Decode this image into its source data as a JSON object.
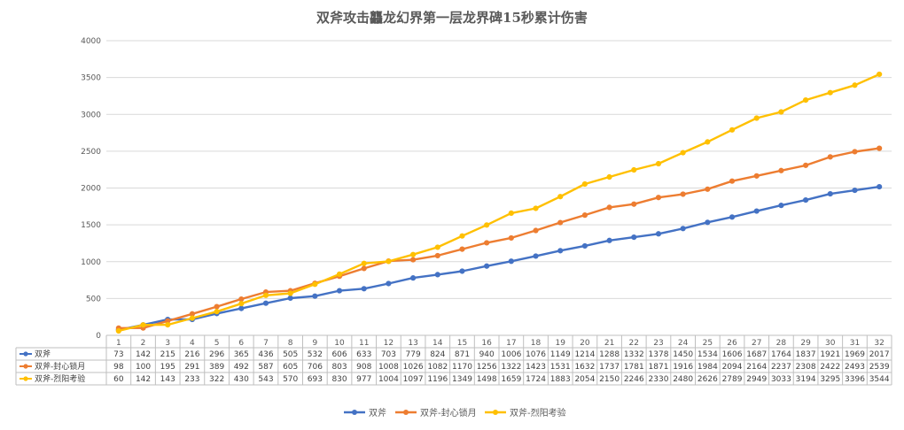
{
  "chart_data": {
    "type": "line",
    "title": "双斧攻击龘龙幻界第一层龙界碑15秒累计伤害",
    "xlabel": "",
    "ylabel": "",
    "ylim": [
      0,
      4000
    ],
    "yticks": [
      "0",
      "500",
      "1000",
      "1500",
      "2000",
      "2500",
      "3000",
      "3500",
      "4000"
    ],
    "grid": true,
    "legend_position": "bottom",
    "categories": [
      "1",
      "2",
      "3",
      "4",
      "5",
      "6",
      "7",
      "8",
      "9",
      "10",
      "11",
      "12",
      "13",
      "14",
      "15",
      "16",
      "17",
      "18",
      "19",
      "20",
      "21",
      "22",
      "23",
      "24",
      "25",
      "26",
      "27",
      "28",
      "29",
      "30",
      "31",
      "32"
    ],
    "series": [
      {
        "name": "双斧",
        "color": "#4472C4",
        "values": [
          73,
          142,
          215,
          216,
          296,
          365,
          436,
          505,
          532,
          606,
          633,
          703,
          779,
          824,
          871,
          940,
          1006,
          1076,
          1149,
          1214,
          1288,
          1332,
          1378,
          1450,
          1534,
          1606,
          1687,
          1764,
          1837,
          1921,
          1969,
          2017
        ]
      },
      {
        "name": "双斧-封心锁月",
        "color": "#ED7D31",
        "values": [
          98,
          100,
          195,
          291,
          389,
          492,
          587,
          605,
          706,
          803,
          908,
          1008,
          1026,
          1082,
          1170,
          1256,
          1322,
          1423,
          1531,
          1632,
          1737,
          1781,
          1871,
          1916,
          1984,
          2094,
          2164,
          2237,
          2308,
          2422,
          2493,
          2539
        ]
      },
      {
        "name": "双斧-烈阳考验",
        "color": "#FFC000",
        "values": [
          60,
          142,
          143,
          233,
          322,
          430,
          543,
          570,
          693,
          830,
          977,
          1004,
          1097,
          1196,
          1349,
          1498,
          1659,
          1724,
          1883,
          2054,
          2150,
          2246,
          2330,
          2480,
          2626,
          2789,
          2949,
          3033,
          3194,
          3295,
          3396,
          3544
        ]
      }
    ]
  }
}
